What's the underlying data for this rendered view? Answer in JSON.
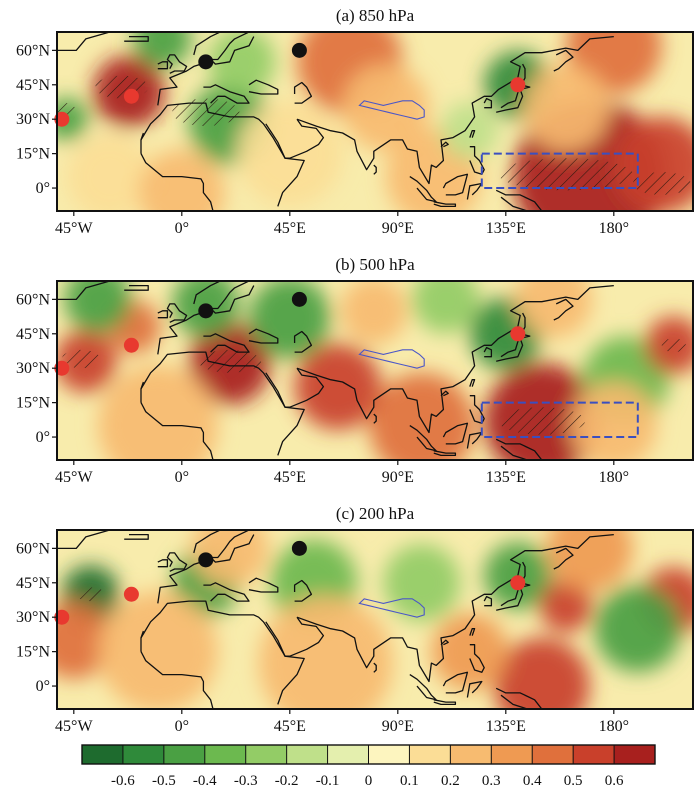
{
  "figure": {
    "panels": [
      {
        "id": "a",
        "title": "(a) 850 hPa"
      },
      {
        "id": "b",
        "title": "(b) 500 hPa"
      },
      {
        "id": "c",
        "title": "(c) 200 hPa"
      }
    ]
  },
  "chart_data": {
    "type": "heatmap",
    "subtype": "filled-contour correlation maps (three pressure levels)",
    "x_ticks": [
      {
        "value": -45,
        "label": "45°W"
      },
      {
        "value": 0,
        "label": "0°"
      },
      {
        "value": 45,
        "label": "45°E"
      },
      {
        "value": 90,
        "label": "90°E"
      },
      {
        "value": 135,
        "label": "135°E"
      },
      {
        "value": 180,
        "label": "180°"
      }
    ],
    "y_ticks": [
      {
        "value": 60,
        "label": "60°N"
      },
      {
        "value": 45,
        "label": "45°N"
      },
      {
        "value": 30,
        "label": "30°N"
      },
      {
        "value": 15,
        "label": "15°N"
      },
      {
        "value": 0,
        "label": "0°"
      }
    ],
    "xlim": [
      -52,
      213
    ],
    "ylim": [
      -10,
      68
    ],
    "colorbar": {
      "ticks": [
        "-0.6",
        "-0.5",
        "-0.4",
        "-0.3",
        "-0.2",
        "-0.1",
        "0",
        "0.1",
        "0.2",
        "0.3",
        "0.4",
        "0.5",
        "0.6"
      ],
      "colors": [
        "#1e6b2e",
        "#2f8a3a",
        "#4aa043",
        "#6cb94f",
        "#93cc66",
        "#bfe08a",
        "#e4efae",
        "#fdf5bf",
        "#fbdd96",
        "#f7bb70",
        "#ef9a52",
        "#e0703c",
        "#c9402b",
        "#a8201e"
      ],
      "range": [
        -0.6,
        0.6
      ]
    },
    "markers": [
      {
        "name": "red-dot-1",
        "color": "#e8392f",
        "lon": -50,
        "lat": 30
      },
      {
        "name": "red-dot-2",
        "color": "#e8392f",
        "lon": -21,
        "lat": 40
      },
      {
        "name": "red-dot-3",
        "color": "#e8392f",
        "lon": 140,
        "lat": 45
      },
      {
        "name": "black-dot-1",
        "color": "#111111",
        "lon": 10,
        "lat": 55
      },
      {
        "name": "black-dot-2",
        "color": "#111111",
        "lon": 49,
        "lat": 60
      }
    ],
    "box_region": {
      "lon": [
        125,
        190
      ],
      "lat": [
        0,
        15
      ],
      "color": "#3a4fc0",
      "style": "dashed",
      "panels": [
        "a",
        "b"
      ]
    },
    "panels": [
      {
        "id": "a",
        "blobs": [
          {
            "lon": -22,
            "lat": 42,
            "r": 15,
            "v": 0.55
          },
          {
            "lon": -48,
            "lat": 30,
            "r": 9,
            "v": -0.4
          },
          {
            "lon": 20,
            "lat": 28,
            "r": 17,
            "v": -0.4
          },
          {
            "lon": -8,
            "lat": 65,
            "r": 12,
            "v": -0.4
          },
          {
            "lon": 70,
            "lat": 55,
            "r": 22,
            "v": 0.35
          },
          {
            "lon": 85,
            "lat": 35,
            "r": 18,
            "v": 0.2
          },
          {
            "lon": 25,
            "lat": 55,
            "r": 14,
            "v": -0.25
          },
          {
            "lon": 140,
            "lat": 45,
            "r": 14,
            "v": -0.45
          },
          {
            "lon": 170,
            "lat": 5,
            "r": 32,
            "v": 0.55
          },
          {
            "lon": 200,
            "lat": 10,
            "r": 20,
            "v": 0.45
          },
          {
            "lon": 180,
            "lat": 62,
            "r": 20,
            "v": 0.4
          },
          {
            "lon": 45,
            "lat": 15,
            "r": 22,
            "v": 0.15
          },
          {
            "lon": 105,
            "lat": 5,
            "r": 20,
            "v": 0.2
          },
          {
            "lon": 160,
            "lat": 35,
            "r": 18,
            "v": 0.2
          },
          {
            "lon": 120,
            "lat": 25,
            "r": 12,
            "v": -0.15
          },
          {
            "lon": -30,
            "lat": 5,
            "r": 18,
            "v": 0.15
          },
          {
            "lon": 0,
            "lat": -2,
            "r": 18,
            "v": 0.2
          }
        ],
        "hatches": [
          {
            "lon": -25,
            "lat": 44,
            "rx": 11,
            "ry": 5
          },
          {
            "lon": 10,
            "lat": 33,
            "rx": 14,
            "ry": 6
          },
          {
            "lon": -48,
            "lat": 33,
            "rx": 4,
            "ry": 4
          },
          {
            "lon": 160,
            "lat": 6,
            "rx": 28,
            "ry": 7
          },
          {
            "lon": 200,
            "lat": 2,
            "rx": 12,
            "ry": 5
          }
        ],
        "show_box": true
      },
      {
        "id": "b",
        "blobs": [
          {
            "lon": 20,
            "lat": 32,
            "r": 17,
            "v": 0.6
          },
          {
            "lon": -40,
            "lat": 33,
            "r": 13,
            "v": 0.5
          },
          {
            "lon": -20,
            "lat": 48,
            "r": 11,
            "v": 0.35
          },
          {
            "lon": -35,
            "lat": 60,
            "r": 14,
            "v": -0.35
          },
          {
            "lon": 10,
            "lat": 58,
            "r": 14,
            "v": -0.4
          },
          {
            "lon": 45,
            "lat": 52,
            "r": 17,
            "v": -0.4
          },
          {
            "lon": 80,
            "lat": 55,
            "r": 14,
            "v": 0.25
          },
          {
            "lon": 135,
            "lat": 45,
            "r": 15,
            "v": -0.45
          },
          {
            "lon": 150,
            "lat": 7,
            "r": 24,
            "v": 0.55
          },
          {
            "lon": 185,
            "lat": 25,
            "r": 18,
            "v": -0.3
          },
          {
            "lon": 205,
            "lat": 40,
            "r": 12,
            "v": 0.45
          },
          {
            "lon": 65,
            "lat": 22,
            "r": 18,
            "v": 0.45
          },
          {
            "lon": 100,
            "lat": 5,
            "r": 22,
            "v": 0.35
          },
          {
            "lon": -10,
            "lat": 5,
            "r": 25,
            "v": 0.25
          },
          {
            "lon": 180,
            "lat": 5,
            "r": 18,
            "v": 0.2
          },
          {
            "lon": 155,
            "lat": 60,
            "r": 16,
            "v": 0.2
          },
          {
            "lon": 110,
            "lat": 60,
            "r": 14,
            "v": -0.2
          }
        ],
        "hatches": [
          {
            "lon": 20,
            "lat": 33,
            "rx": 13,
            "ry": 5
          },
          {
            "lon": -42,
            "lat": 34,
            "rx": 8,
            "ry": 4
          },
          {
            "lon": 150,
            "lat": 7,
            "rx": 18,
            "ry": 6
          },
          {
            "lon": 205,
            "lat": 40,
            "rx": 5,
            "ry": 3
          }
        ],
        "show_box": true
      },
      {
        "id": "c",
        "blobs": [
          {
            "lon": -38,
            "lat": 40,
            "r": 12,
            "v": -0.6
          },
          {
            "lon": 10,
            "lat": 45,
            "r": 14,
            "v": -0.35
          },
          {
            "lon": 55,
            "lat": 45,
            "r": 18,
            "v": -0.3
          },
          {
            "lon": 100,
            "lat": 45,
            "r": 16,
            "v": -0.2
          },
          {
            "lon": 140,
            "lat": 48,
            "r": 14,
            "v": -0.35
          },
          {
            "lon": 160,
            "lat": 35,
            "r": 11,
            "v": 0.5
          },
          {
            "lon": 205,
            "lat": 37,
            "r": 14,
            "v": 0.5
          },
          {
            "lon": 190,
            "lat": 25,
            "r": 18,
            "v": -0.4
          },
          {
            "lon": 170,
            "lat": 60,
            "r": 18,
            "v": 0.3
          },
          {
            "lon": -45,
            "lat": 20,
            "r": 16,
            "v": 0.35
          },
          {
            "lon": 150,
            "lat": 0,
            "r": 20,
            "v": 0.45
          },
          {
            "lon": 120,
            "lat": 15,
            "r": 16,
            "v": 0.3
          },
          {
            "lon": 60,
            "lat": 10,
            "r": 28,
            "v": 0.2
          },
          {
            "lon": 20,
            "lat": 60,
            "r": 16,
            "v": 0.2
          },
          {
            "lon": -10,
            "lat": 15,
            "r": 25,
            "v": 0.25
          }
        ],
        "hatches": [
          {
            "lon": -38,
            "lat": 40,
            "rx": 6,
            "ry": 3
          }
        ],
        "show_box": false
      }
    ]
  }
}
